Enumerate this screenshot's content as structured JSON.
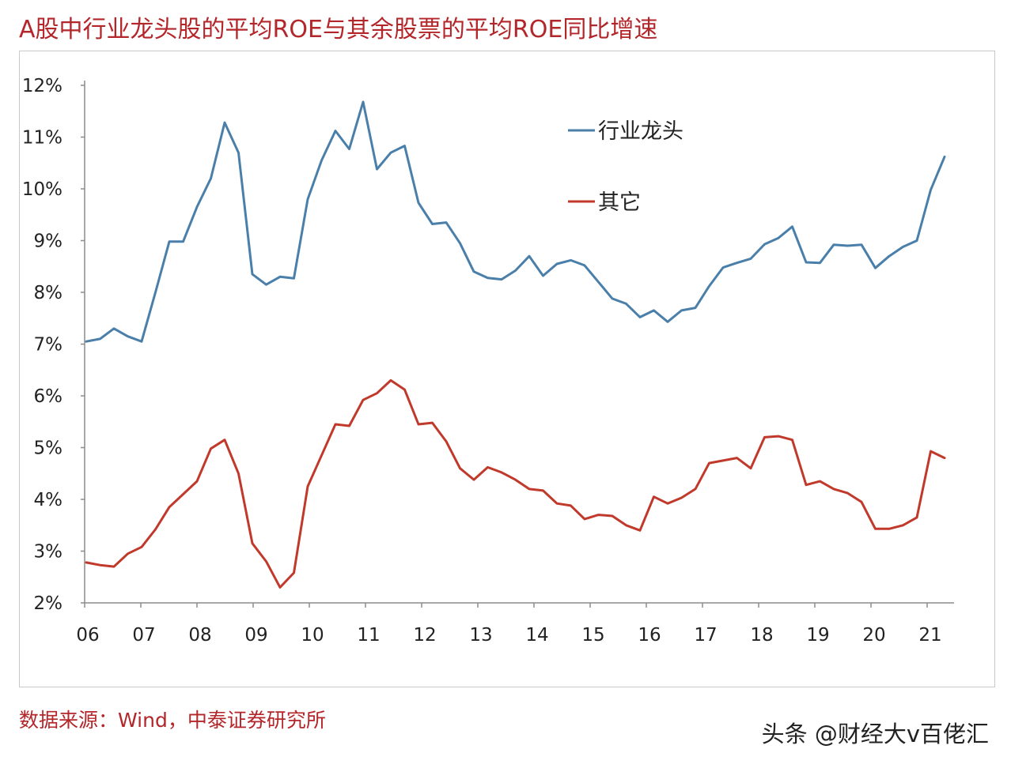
{
  "title": "A股中行业龙头股的平均ROE与其余股票的平均ROE同比增速",
  "source": "数据来源：Wind，中泰证券研究所",
  "watermark": "头条 @财经大v百佬汇",
  "chart_data": {
    "type": "line",
    "ylim": [
      2,
      12
    ],
    "yticks": [
      "2%",
      "3%",
      "4%",
      "5%",
      "6%",
      "7%",
      "8%",
      "9%",
      "10%",
      "11%",
      "12%"
    ],
    "xticks": [
      "06",
      "07",
      "08",
      "09",
      "10",
      "11",
      "12",
      "13",
      "14",
      "15",
      "16",
      "17",
      "18",
      "19",
      "20",
      "21"
    ],
    "legend_position": "top-right",
    "grid": false,
    "series": [
      {
        "name": "行业龙头",
        "color": "#4a7faa",
        "values": [
          7.05,
          7.1,
          7.3,
          7.15,
          7.05,
          8.0,
          8.98,
          8.98,
          9.65,
          10.2,
          11.28,
          10.7,
          8.35,
          8.15,
          8.3,
          8.27,
          9.8,
          10.55,
          11.12,
          10.77,
          11.68,
          10.38,
          10.7,
          10.83,
          9.73,
          9.32,
          9.35,
          8.95,
          8.4,
          8.28,
          8.25,
          8.42,
          8.7,
          8.32,
          8.55,
          8.62,
          8.52,
          8.2,
          7.88,
          7.78,
          7.52,
          7.65,
          7.43,
          7.65,
          7.7,
          8.12,
          8.48,
          8.57,
          8.65,
          8.93,
          9.05,
          9.27,
          8.58,
          8.57,
          8.92,
          8.9,
          8.92,
          8.47,
          8.7,
          8.88,
          9.0,
          9.98,
          10.62
        ]
      },
      {
        "name": "其它",
        "color": "#c0392b",
        "values": [
          2.78,
          2.73,
          2.7,
          2.95,
          3.08,
          3.42,
          3.85,
          4.1,
          4.35,
          4.98,
          5.15,
          4.5,
          3.15,
          2.8,
          2.3,
          2.58,
          4.25,
          4.85,
          5.45,
          5.42,
          5.92,
          6.05,
          6.3,
          6.12,
          5.45,
          5.48,
          5.12,
          4.6,
          4.38,
          4.62,
          4.52,
          4.38,
          4.2,
          4.17,
          3.92,
          3.88,
          3.62,
          3.7,
          3.68,
          3.5,
          3.4,
          4.05,
          3.92,
          4.03,
          4.2,
          4.7,
          4.75,
          4.8,
          4.6,
          5.2,
          5.22,
          5.15,
          4.28,
          4.35,
          4.2,
          4.12,
          3.95,
          3.43,
          3.43,
          3.5,
          3.65,
          4.93,
          4.8
        ]
      }
    ]
  }
}
